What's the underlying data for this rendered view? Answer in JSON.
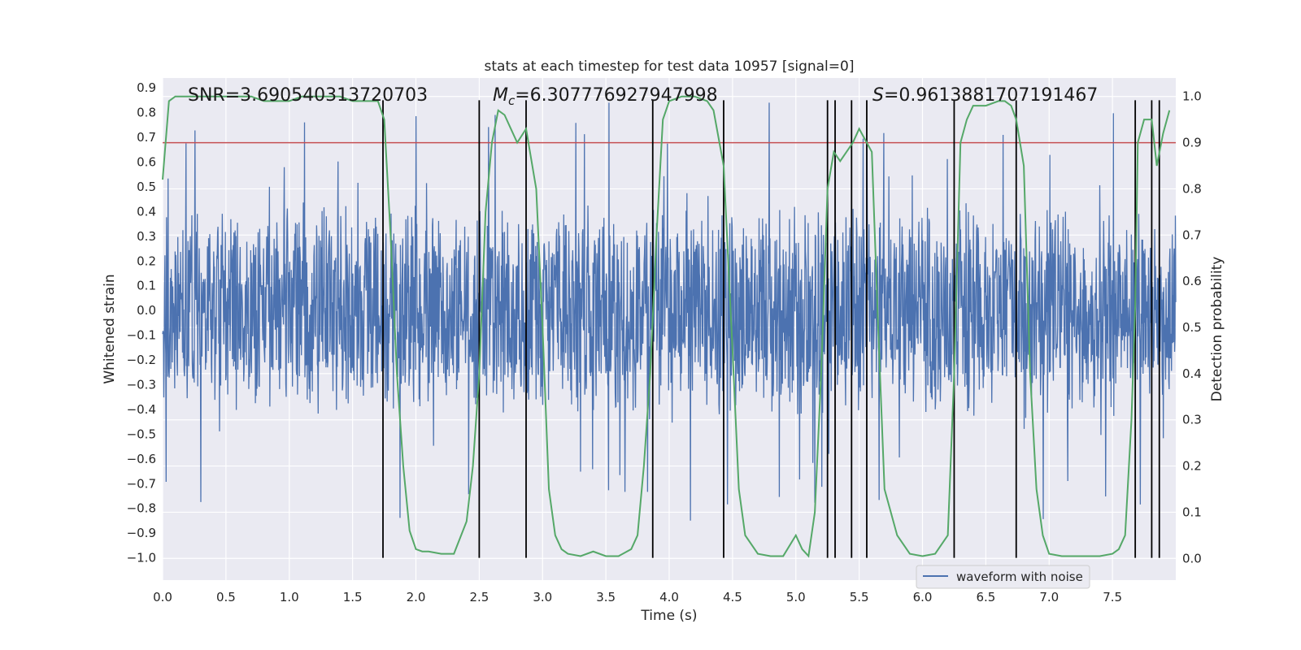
{
  "chart_data": {
    "type": "line",
    "title": "stats at each timestep for test data 10957 [signal=0]",
    "xlabel": "Time (s)",
    "ylabel_left": "Whitened strain",
    "ylabel_right": "Detection probability",
    "xlim": [
      0,
      8
    ],
    "ylim_left": [
      -1.09,
      0.94
    ],
    "ylim_right": [
      -0.047,
      1.04
    ],
    "x_ticks": [
      0.0,
      0.5,
      1.0,
      1.5,
      2.0,
      2.5,
      3.0,
      3.5,
      4.0,
      4.5,
      5.0,
      5.5,
      6.0,
      6.5,
      7.0,
      7.5
    ],
    "x_tick_labels": [
      "0.0",
      "0.5",
      "1.0",
      "1.5",
      "2.0",
      "2.5",
      "3.0",
      "3.5",
      "4.0",
      "4.5",
      "5.0",
      "5.5",
      "6.0",
      "6.5",
      "7.0",
      "7.5"
    ],
    "y_left_ticks": [
      0.9,
      0.8,
      0.7,
      0.6,
      0.5,
      0.4,
      0.3,
      0.2,
      0.1,
      0.0,
      -0.1,
      -0.2,
      -0.3,
      -0.4,
      -0.5,
      -0.6,
      -0.7,
      -0.8,
      -0.9,
      -1.0
    ],
    "y_left_tick_labels": [
      "0.9",
      "0.8",
      "0.7",
      "0.6",
      "0.5",
      "0.4",
      "0.3",
      "0.2",
      "0.1",
      "0.0",
      "−0.1",
      "−0.2",
      "−0.3",
      "−0.4",
      "−0.5",
      "−0.6",
      "−0.7",
      "−0.8",
      "−0.9",
      "−1.0"
    ],
    "y_right_ticks": [
      1.0,
      0.9,
      0.8,
      0.7,
      0.6,
      0.5,
      0.4,
      0.3,
      0.2,
      0.1,
      0.0
    ],
    "y_right_tick_labels": [
      "1.0",
      "0.9",
      "0.8",
      "0.7",
      "0.6",
      "0.5",
      "0.4",
      "0.3",
      "0.2",
      "0.1",
      "0.0"
    ],
    "grid": true,
    "legend": {
      "entries": [
        "waveform with noise"
      ],
      "placement": "lower-right"
    },
    "annotations": {
      "snr": "SNR=3.690540313720703",
      "mc_symbol": "M",
      "mc_sub": "c",
      "mc_value": "=6.307776927947998",
      "s_symbol": "S",
      "s_value": "=0.9613881707191467"
    },
    "threshold": {
      "y_right": 0.9,
      "color": "#c44e52"
    },
    "detection_times": [
      1.74,
      2.5,
      2.87,
      3.87,
      4.43,
      5.25,
      5.31,
      5.44,
      5.56,
      6.25,
      6.74,
      7.68,
      7.81,
      7.87
    ],
    "detection_line_bottom": -1.0,
    "detection_line_top": 0.85,
    "waveform": {
      "envelope": 0.33,
      "noise_scale": 0.11,
      "spike_max": 0.85,
      "sample_rate": 2048,
      "color": "#4c72b0"
    },
    "probability": {
      "color": "#55a868",
      "x": [
        0.0,
        0.05,
        0.1,
        0.2,
        0.3,
        0.4,
        0.5,
        0.6,
        0.7,
        0.8,
        0.9,
        0.95,
        1.0,
        1.1,
        1.2,
        1.3,
        1.4,
        1.5,
        1.6,
        1.65,
        1.7,
        1.75,
        1.8,
        1.85,
        1.9,
        1.95,
        2.0,
        2.05,
        2.1,
        2.2,
        2.3,
        2.4,
        2.45,
        2.5,
        2.55,
        2.6,
        2.65,
        2.7,
        2.75,
        2.8,
        2.87,
        2.95,
        3.0,
        3.05,
        3.1,
        3.15,
        3.2,
        3.3,
        3.4,
        3.5,
        3.6,
        3.7,
        3.75,
        3.8,
        3.85,
        3.9,
        3.95,
        4.0,
        4.1,
        4.2,
        4.3,
        4.35,
        4.43,
        4.5,
        4.55,
        4.6,
        4.7,
        4.8,
        4.9,
        5.0,
        5.05,
        5.1,
        5.15,
        5.2,
        5.25,
        5.3,
        5.35,
        5.4,
        5.45,
        5.5,
        5.56,
        5.6,
        5.65,
        5.7,
        5.8,
        5.9,
        6.0,
        6.1,
        6.2,
        6.25,
        6.3,
        6.35,
        6.4,
        6.5,
        6.6,
        6.65,
        6.7,
        6.74,
        6.8,
        6.85,
        6.9,
        6.95,
        7.0,
        7.1,
        7.2,
        7.3,
        7.4,
        7.5,
        7.55,
        7.6,
        7.65,
        7.68,
        7.7,
        7.75,
        7.81,
        7.85,
        7.9,
        7.95
      ],
      "y": [
        0.82,
        0.99,
        1.0,
        1.0,
        1.0,
        1.0,
        1.0,
        1.0,
        1.0,
        0.99,
        0.99,
        0.99,
        0.99,
        1.0,
        1.0,
        1.0,
        1.0,
        0.99,
        0.99,
        0.99,
        0.99,
        0.95,
        0.7,
        0.4,
        0.2,
        0.06,
        0.02,
        0.015,
        0.015,
        0.01,
        0.01,
        0.08,
        0.2,
        0.4,
        0.75,
        0.9,
        0.97,
        0.96,
        0.93,
        0.9,
        0.93,
        0.8,
        0.5,
        0.15,
        0.05,
        0.02,
        0.01,
        0.005,
        0.015,
        0.005,
        0.005,
        0.02,
        0.05,
        0.2,
        0.4,
        0.7,
        0.95,
        0.99,
        1.0,
        1.0,
        0.99,
        0.97,
        0.85,
        0.45,
        0.15,
        0.05,
        0.01,
        0.005,
        0.005,
        0.05,
        0.02,
        0.005,
        0.1,
        0.4,
        0.8,
        0.88,
        0.86,
        0.88,
        0.9,
        0.93,
        0.9,
        0.88,
        0.5,
        0.15,
        0.05,
        0.01,
        0.005,
        0.01,
        0.05,
        0.4,
        0.9,
        0.95,
        0.98,
        0.98,
        0.99,
        0.99,
        0.98,
        0.95,
        0.85,
        0.4,
        0.15,
        0.05,
        0.01,
        0.005,
        0.005,
        0.005,
        0.005,
        0.01,
        0.02,
        0.05,
        0.3,
        0.55,
        0.9,
        0.95,
        0.95,
        0.85,
        0.92,
        0.97
      ]
    }
  }
}
